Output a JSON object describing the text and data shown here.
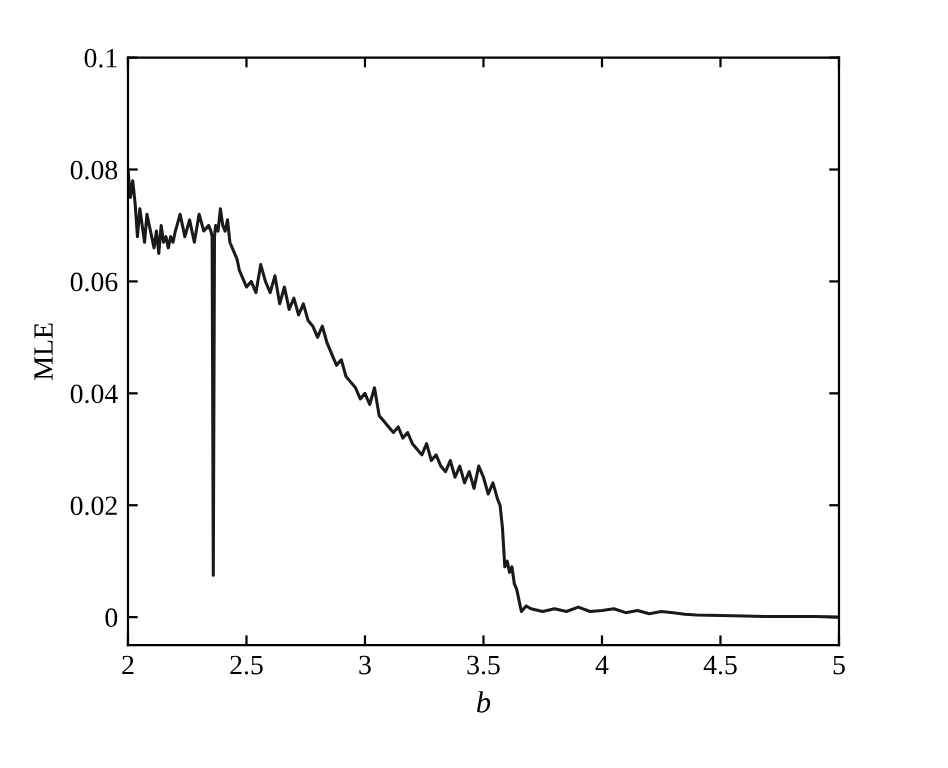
{
  "chart_data": {
    "type": "line",
    "xlabel": "b",
    "ylabel": "MLE",
    "xlim": [
      2,
      5
    ],
    "ylim": [
      -0.005,
      0.1
    ],
    "xticks": [
      2,
      2.5,
      3,
      3.5,
      4,
      4.5,
      5
    ],
    "yticks": [
      0,
      0.02,
      0.04,
      0.06,
      0.08,
      0.1
    ],
    "grid": false,
    "marker": "none",
    "line_style": "solid",
    "series": [
      {
        "color": "#1a1a1a",
        "x": [
          2.0,
          2.01,
          2.02,
          2.03,
          2.04,
          2.05,
          2.06,
          2.07,
          2.08,
          2.09,
          2.1,
          2.11,
          2.12,
          2.13,
          2.14,
          2.15,
          2.16,
          2.17,
          2.18,
          2.19,
          2.2,
          2.22,
          2.24,
          2.26,
          2.28,
          2.3,
          2.32,
          2.34,
          2.35,
          2.355,
          2.36,
          2.365,
          2.37,
          2.38,
          2.39,
          2.4,
          2.41,
          2.42,
          2.43,
          2.44,
          2.45,
          2.46,
          2.47,
          2.48,
          2.5,
          2.52,
          2.54,
          2.56,
          2.58,
          2.6,
          2.62,
          2.64,
          2.66,
          2.68,
          2.7,
          2.72,
          2.74,
          2.76,
          2.78,
          2.8,
          2.82,
          2.84,
          2.86,
          2.88,
          2.9,
          2.92,
          2.94,
          2.96,
          2.98,
          3.0,
          3.02,
          3.04,
          3.06,
          3.08,
          3.1,
          3.12,
          3.14,
          3.16,
          3.18,
          3.2,
          3.22,
          3.24,
          3.26,
          3.28,
          3.3,
          3.32,
          3.34,
          3.36,
          3.38,
          3.4,
          3.42,
          3.44,
          3.46,
          3.48,
          3.5,
          3.52,
          3.54,
          3.56,
          3.57,
          3.58,
          3.59,
          3.6,
          3.61,
          3.62,
          3.63,
          3.64,
          3.65,
          3.66,
          3.68,
          3.7,
          3.75,
          3.8,
          3.85,
          3.9,
          3.95,
          4.0,
          4.05,
          4.1,
          4.15,
          4.2,
          4.25,
          4.3,
          4.35,
          4.4,
          4.5,
          4.6,
          4.7,
          4.8,
          4.9,
          5.0
        ],
        "values": [
          0.08,
          0.075,
          0.078,
          0.074,
          0.068,
          0.073,
          0.07,
          0.067,
          0.072,
          0.07,
          0.068,
          0.066,
          0.069,
          0.065,
          0.07,
          0.067,
          0.068,
          0.066,
          0.068,
          0.067,
          0.069,
          0.072,
          0.068,
          0.071,
          0.067,
          0.072,
          0.069,
          0.07,
          0.069,
          0.068,
          0.0075,
          0.068,
          0.07,
          0.069,
          0.073,
          0.07,
          0.069,
          0.071,
          0.067,
          0.066,
          0.065,
          0.064,
          0.062,
          0.061,
          0.059,
          0.06,
          0.058,
          0.063,
          0.06,
          0.058,
          0.061,
          0.056,
          0.059,
          0.055,
          0.057,
          0.054,
          0.056,
          0.053,
          0.052,
          0.05,
          0.052,
          0.049,
          0.047,
          0.045,
          0.046,
          0.043,
          0.042,
          0.041,
          0.039,
          0.04,
          0.038,
          0.041,
          0.036,
          0.035,
          0.034,
          0.033,
          0.034,
          0.032,
          0.033,
          0.031,
          0.03,
          0.029,
          0.031,
          0.028,
          0.029,
          0.027,
          0.026,
          0.028,
          0.025,
          0.027,
          0.024,
          0.026,
          0.023,
          0.027,
          0.025,
          0.022,
          0.024,
          0.021,
          0.02,
          0.016,
          0.009,
          0.01,
          0.008,
          0.009,
          0.006,
          0.005,
          0.003,
          0.001,
          0.002,
          0.0015,
          0.001,
          0.0015,
          0.001,
          0.0018,
          0.001,
          0.0012,
          0.0015,
          0.0008,
          0.0012,
          0.0006,
          0.001,
          0.0008,
          0.0005,
          0.0004,
          0.0003,
          0.0002,
          0.0001,
          0.0001,
          0.0001,
          0.0
        ]
      }
    ]
  }
}
